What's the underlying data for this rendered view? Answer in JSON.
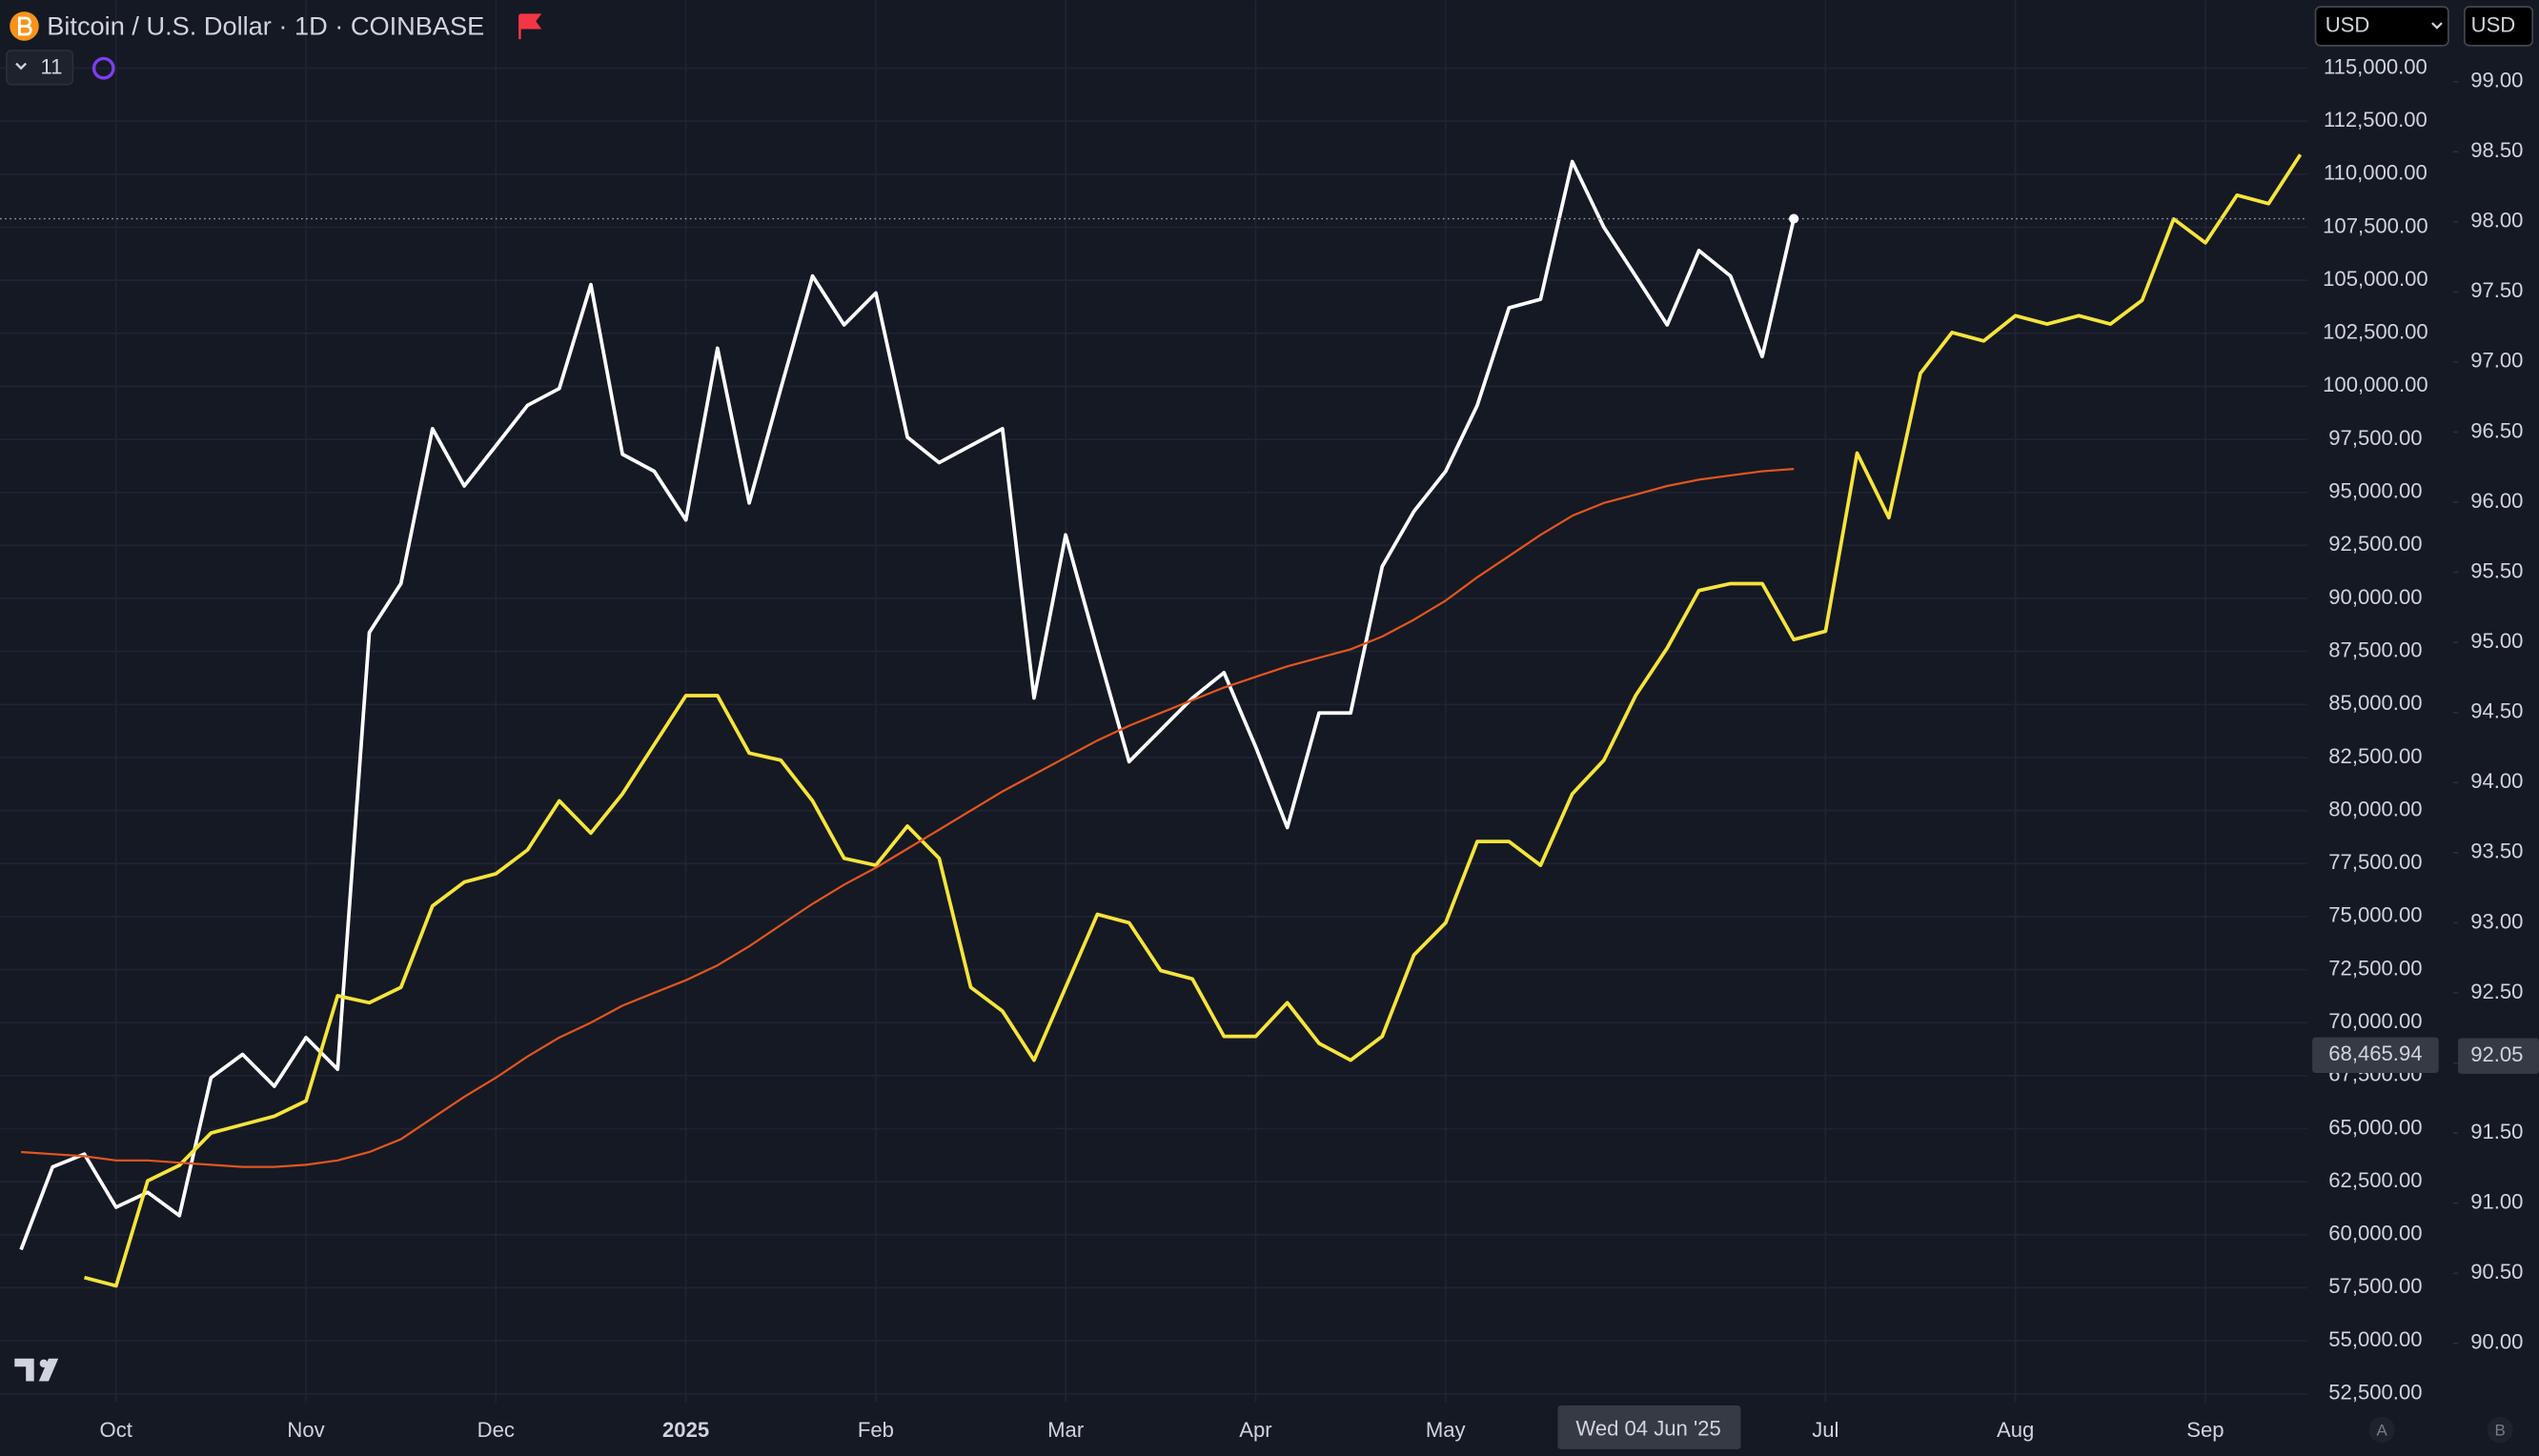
{
  "chart_data": {
    "type": "line",
    "title": "Bitcoin / U.S. Dollar · 1D · COINBASE",
    "indicator_count": "11",
    "currency_selectors": [
      "USD",
      "USD"
    ],
    "axis_buttons": [
      "A",
      "B"
    ],
    "categories": [
      null,
      null,
      null,
      "Oct",
      null,
      null,
      null,
      null,
      null,
      "Nov",
      null,
      null,
      null,
      null,
      null,
      "Dec",
      null,
      null,
      null,
      null,
      null,
      "2025",
      null,
      null,
      null,
      null,
      null,
      "Feb",
      null,
      null,
      null,
      null,
      null,
      "Mar",
      null,
      null,
      null,
      null,
      null,
      "Apr",
      null,
      null,
      null,
      null,
      null,
      "May",
      null,
      null,
      null,
      null,
      null,
      null,
      null,
      null,
      null,
      null,
      null,
      "Jul",
      null,
      null,
      null,
      null,
      null,
      "Aug",
      null,
      null,
      null,
      null,
      null,
      "Sep",
      null,
      null,
      null
    ],
    "series": [
      {
        "color": "#ffffff",
        "values": [
          59300,
          63200,
          63800,
          61300,
          62000,
          60900,
          67400,
          68500,
          67000,
          69300,
          67800,
          88400,
          90700,
          98000,
          95300,
          97200,
          99100,
          99900,
          104800,
          96800,
          96000,
          93700,
          101800,
          94500,
          99900,
          105200,
          102900,
          104400,
          97600,
          96400,
          97200,
          98000,
          85300,
          93000,
          87600,
          82300,
          83800,
          85300,
          86500,
          83000,
          79200,
          84600,
          84600,
          91500,
          94100,
          96000,
          99100,
          103700,
          104100,
          110600,
          107500,
          105200,
          102900,
          106400,
          105200,
          101400,
          107900,
          null,
          null,
          null,
          null,
          null,
          null,
          null,
          null,
          null,
          null,
          null,
          null,
          null,
          null,
          null,
          null
        ]
      },
      {
        "color": "#f7e43c",
        "axis": "y2",
        "values": [
          null,
          null,
          90.47,
          90.41,
          91.16,
          91.27,
          91.5,
          91.56,
          91.62,
          91.73,
          92.48,
          92.43,
          92.54,
          93.12,
          93.29,
          93.35,
          93.52,
          93.87,
          93.64,
          93.92,
          94.27,
          94.62,
          94.62,
          94.21,
          94.16,
          93.87,
          93.46,
          93.41,
          93.69,
          93.46,
          92.54,
          92.37,
          92.02,
          92.54,
          93.06,
          93.0,
          92.66,
          92.6,
          92.19,
          92.19,
          92.43,
          92.14,
          92.02,
          92.19,
          92.77,
          93.0,
          93.58,
          93.58,
          93.41,
          93.92,
          94.16,
          94.62,
          94.96,
          95.37,
          95.42,
          95.42,
          95.02,
          95.08,
          96.35,
          95.89,
          96.92,
          97.21,
          97.15,
          97.33,
          97.27,
          97.33,
          97.27,
          97.44,
          98.02,
          97.85,
          98.19,
          98.13,
          98.48
        ]
      },
      {
        "color": "#e2561f",
        "values": [
          63900,
          63800,
          63700,
          63500,
          63500,
          63400,
          63300,
          63200,
          63200,
          63300,
          63500,
          63900,
          64500,
          65500,
          66500,
          67400,
          68400,
          69300,
          70000,
          70800,
          71400,
          72000,
          72700,
          73600,
          74600,
          75600,
          76500,
          77300,
          78200,
          79100,
          80000,
          80900,
          81700,
          82500,
          83300,
          84000,
          84600,
          85200,
          85800,
          86300,
          86800,
          87200,
          87600,
          88200,
          89000,
          89900,
          91000,
          92000,
          93000,
          93900,
          94500,
          94900,
          95300,
          95600,
          95800,
          96000,
          96100,
          null,
          null,
          null,
          null,
          null,
          null,
          null,
          null,
          null,
          null,
          null,
          null,
          null,
          null,
          null,
          null
        ]
      }
    ],
    "ylim": [
      52100,
      118200
    ],
    "yticks": [
      {
        "value": 52500,
        "label": "52,500.00"
      },
      {
        "value": 55000,
        "label": "55,000.00"
      },
      {
        "value": 57500,
        "label": "57,500.00"
      },
      {
        "value": 60000,
        "label": "60,000.00"
      },
      {
        "value": 62500,
        "label": "62,500.00"
      },
      {
        "value": 65000,
        "label": "65,000.00"
      },
      {
        "value": 67500,
        "label": "67,500.00"
      },
      {
        "value": 70000,
        "label": "70,000.00"
      },
      {
        "value": 72500,
        "label": "72,500.00"
      },
      {
        "value": 75000,
        "label": "75,000.00"
      },
      {
        "value": 77500,
        "label": "77,500.00"
      },
      {
        "value": 80000,
        "label": "80,000.00"
      },
      {
        "value": 82500,
        "label": "82,500.00"
      },
      {
        "value": 85000,
        "label": "85,000.00"
      },
      {
        "value": 87500,
        "label": "87,500.00"
      },
      {
        "value": 90000,
        "label": "90,000.00"
      },
      {
        "value": 92500,
        "label": "92,500.00"
      },
      {
        "value": 95000,
        "label": "95,000.00"
      },
      {
        "value": 97500,
        "label": "97,500.00"
      },
      {
        "value": 100000,
        "label": "100,000.00"
      },
      {
        "value": 102500,
        "label": "102,500.00"
      },
      {
        "value": 105000,
        "label": "105,000.00"
      },
      {
        "value": 107500,
        "label": "107,500.00"
      },
      {
        "value": 110000,
        "label": "110,000.00"
      },
      {
        "value": 112500,
        "label": "112,500.00"
      },
      {
        "value": 115000,
        "label": "115,000.00"
      }
    ],
    "y2lim": [
      89.58,
      99.58
    ],
    "y2ticks": [
      {
        "value": 90,
        "label": "90.00"
      },
      {
        "value": 90.5,
        "label": "90.50"
      },
      {
        "value": 91,
        "label": "91.00"
      },
      {
        "value": 91.5,
        "label": "91.50"
      },
      {
        "value": 92,
        "label": "92.00"
      },
      {
        "value": 92.5,
        "label": "92.50"
      },
      {
        "value": 93,
        "label": "93.00"
      },
      {
        "value": 93.5,
        "label": "93.50"
      },
      {
        "value": 94,
        "label": "94.00"
      },
      {
        "value": 94.5,
        "label": "94.50"
      },
      {
        "value": 95,
        "label": "95.00"
      },
      {
        "value": 95.5,
        "label": "95.50"
      },
      {
        "value": 96,
        "label": "96.00"
      },
      {
        "value": 96.5,
        "label": "96.50"
      },
      {
        "value": 97,
        "label": "97.00"
      },
      {
        "value": 97.5,
        "label": "97.50"
      },
      {
        "value": 98,
        "label": "98.00"
      },
      {
        "value": 98.5,
        "label": "98.50"
      },
      {
        "value": 99,
        "label": "99.00"
      }
    ],
    "crosshair": {
      "date_label": "Wed 04 Jun '25",
      "y": {
        "value": 68465.94,
        "label": "68,465.94"
      },
      "y2": {
        "value": 92.05,
        "label": "92.05"
      }
    },
    "grid": true
  }
}
